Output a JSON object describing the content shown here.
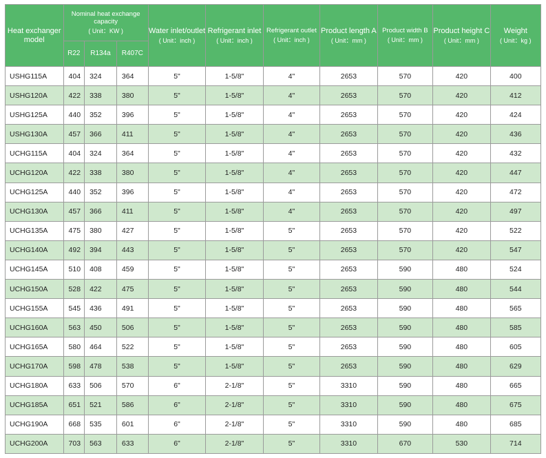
{
  "headers": {
    "model": "Heat exchanger model",
    "capacity": {
      "label": "Nominal heat exchange capacity",
      "unit": "( Unit：KW )"
    },
    "capacity_sub": [
      "R22",
      "R134a",
      "R407C"
    ],
    "water": {
      "label": "Water inlet/outlet",
      "unit": "( Unit：inch )"
    },
    "refrig_in": {
      "label": "Refrigerant inlet",
      "unit": "( Unit：inch )"
    },
    "refrig_out": {
      "label": "Refrigerant outlet",
      "unit": "( Unit：inch )"
    },
    "length": {
      "label": "Product length A",
      "unit": "( Unit：mm )"
    },
    "width": {
      "label": "Product width B",
      "unit": "( Unit：mm )"
    },
    "height": {
      "label": "Product height C",
      "unit": "( Unit：mm )"
    },
    "weight": {
      "label": "Weight",
      "unit": "( Unit：kg )"
    }
  },
  "colors": {
    "header_bg": "#55b86b",
    "stripe": "#cfe8cd",
    "border": "#9a9a9a"
  },
  "rows": [
    [
      "USHG115A",
      "404",
      "324",
      "364",
      "5\"",
      "1-5/8\"",
      "4\"",
      "2653",
      "570",
      "420",
      "400"
    ],
    [
      "USHG120A",
      "422",
      "338",
      "380",
      "5\"",
      "1-5/8\"",
      "4\"",
      "2653",
      "570",
      "420",
      "412"
    ],
    [
      "USHG125A",
      "440",
      "352",
      "396",
      "5\"",
      "1-5/8\"",
      "4\"",
      "2653",
      "570",
      "420",
      "424"
    ],
    [
      "USHG130A",
      "457",
      "366",
      "411",
      "5\"",
      "1-5/8\"",
      "4\"",
      "2653",
      "570",
      "420",
      "436"
    ],
    [
      "UCHG115A",
      "404",
      "324",
      "364",
      "5\"",
      "1-5/8\"",
      "4\"",
      "2653",
      "570",
      "420",
      "432"
    ],
    [
      "UCHG120A",
      "422",
      "338",
      "380",
      "5\"",
      "1-5/8\"",
      "4\"",
      "2653",
      "570",
      "420",
      "447"
    ],
    [
      "UCHG125A",
      "440",
      "352",
      "396",
      "5\"",
      "1-5/8\"",
      "4\"",
      "2653",
      "570",
      "420",
      "472"
    ],
    [
      "UCHG130A",
      "457",
      "366",
      "411",
      "5\"",
      "1-5/8\"",
      "4\"",
      "2653",
      "570",
      "420",
      "497"
    ],
    [
      "UCHG135A",
      "475",
      "380",
      "427",
      "5\"",
      "1-5/8\"",
      "5\"",
      "2653",
      "570",
      "420",
      "522"
    ],
    [
      "UCHG140A",
      "492",
      "394",
      "443",
      "5\"",
      "1-5/8\"",
      "5\"",
      "2653",
      "570",
      "420",
      "547"
    ],
    [
      "UCHG145A",
      "510",
      "408",
      "459",
      "5\"",
      "1-5/8\"",
      "5\"",
      "2653",
      "590",
      "480",
      "524"
    ],
    [
      "UCHG150A",
      "528",
      "422",
      "475",
      "5\"",
      "1-5/8\"",
      "5\"",
      "2653",
      "590",
      "480",
      "544"
    ],
    [
      "UCHG155A",
      "545",
      "436",
      "491",
      "5\"",
      "1-5/8\"",
      "5\"",
      "2653",
      "590",
      "480",
      "565"
    ],
    [
      "UCHG160A",
      "563",
      "450",
      "506",
      "5\"",
      "1-5/8\"",
      "5\"",
      "2653",
      "590",
      "480",
      "585"
    ],
    [
      "UCHG165A",
      "580",
      "464",
      "522",
      "5\"",
      "1-5/8\"",
      "5\"",
      "2653",
      "590",
      "480",
      "605"
    ],
    [
      "UCHG170A",
      "598",
      "478",
      "538",
      "5\"",
      "1-5/8\"",
      "5\"",
      "2653",
      "590",
      "480",
      "629"
    ],
    [
      "UCHG180A",
      "633",
      "506",
      "570",
      "6\"",
      "2-1/8\"",
      "5\"",
      "3310",
      "590",
      "480",
      "665"
    ],
    [
      "UCHG185A",
      "651",
      "521",
      "586",
      "6\"",
      "2-1/8\"",
      "5\"",
      "3310",
      "590",
      "480",
      "675"
    ],
    [
      "UCHG190A",
      "668",
      "535",
      "601",
      "6\"",
      "2-1/8\"",
      "5\"",
      "3310",
      "590",
      "480",
      "685"
    ],
    [
      "UCHG200A",
      "703",
      "563",
      "633",
      "6\"",
      "2-1/8\"",
      "5\"",
      "3310",
      "670",
      "530",
      "714"
    ]
  ]
}
